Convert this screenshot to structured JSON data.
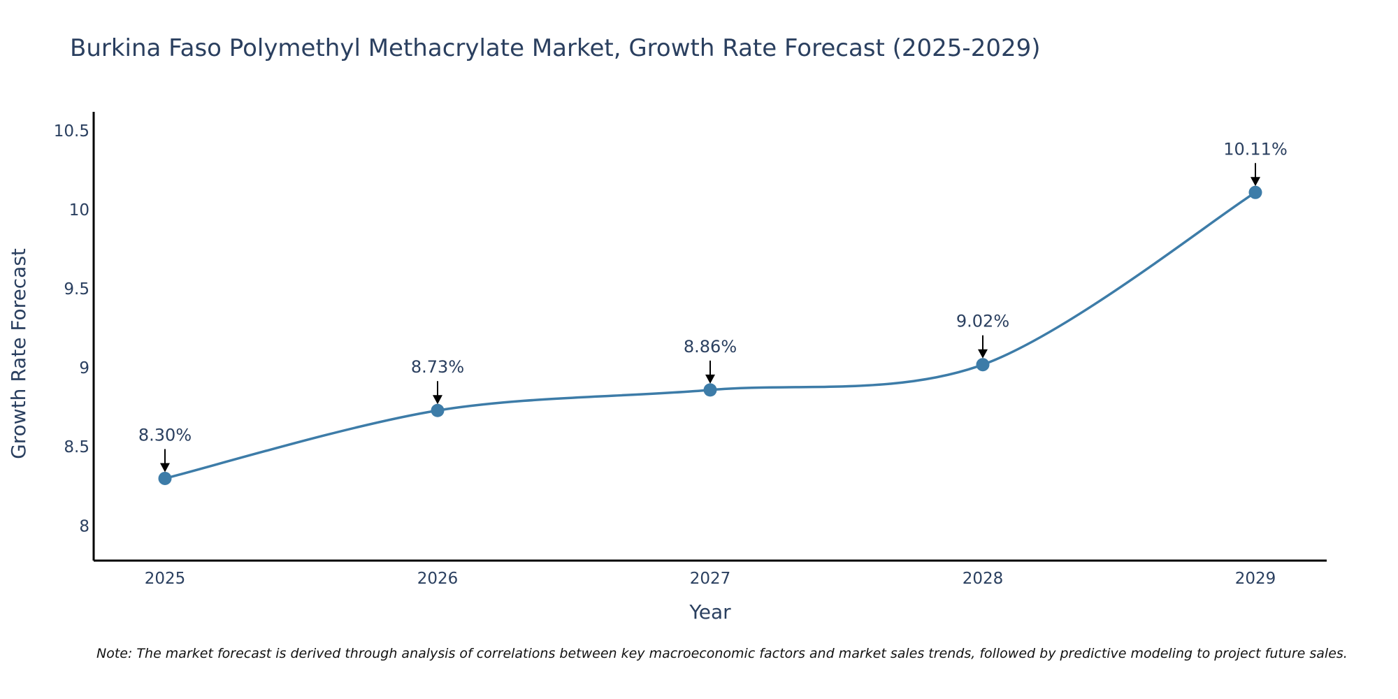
{
  "chart_data": {
    "type": "line",
    "title": "Burkina Faso Polymethyl Methacrylate Market, Growth Rate Forecast (2025-2029)",
    "xlabel": "Year",
    "ylabel": "Growth Rate Forecast",
    "categories": [
      "2025",
      "2026",
      "2027",
      "2028",
      "2029"
    ],
    "values": [
      8.3,
      8.73,
      8.86,
      9.02,
      10.11
    ],
    "data_labels": [
      "8.30%",
      "8.73%",
      "8.86%",
      "9.02%",
      "10.11%"
    ],
    "ylim": [
      7.78,
      10.62
    ],
    "yticks": [
      8,
      8.5,
      9,
      9.5,
      10,
      10.5
    ],
    "ytick_labels": [
      "8",
      "8.5",
      "9",
      "9.5",
      "10",
      "10.5"
    ],
    "grid": false,
    "line_shape": "spline",
    "colors": {
      "line": "#3d7ca8",
      "marker": "#3d7ca8",
      "text": "#2a3f5f",
      "axis": "#000000",
      "arrow": "#000000"
    },
    "note": "Note: The market forecast is derived through analysis of correlations between key macroeconomic factors and market sales trends, followed by predictive modeling to project future sales."
  }
}
